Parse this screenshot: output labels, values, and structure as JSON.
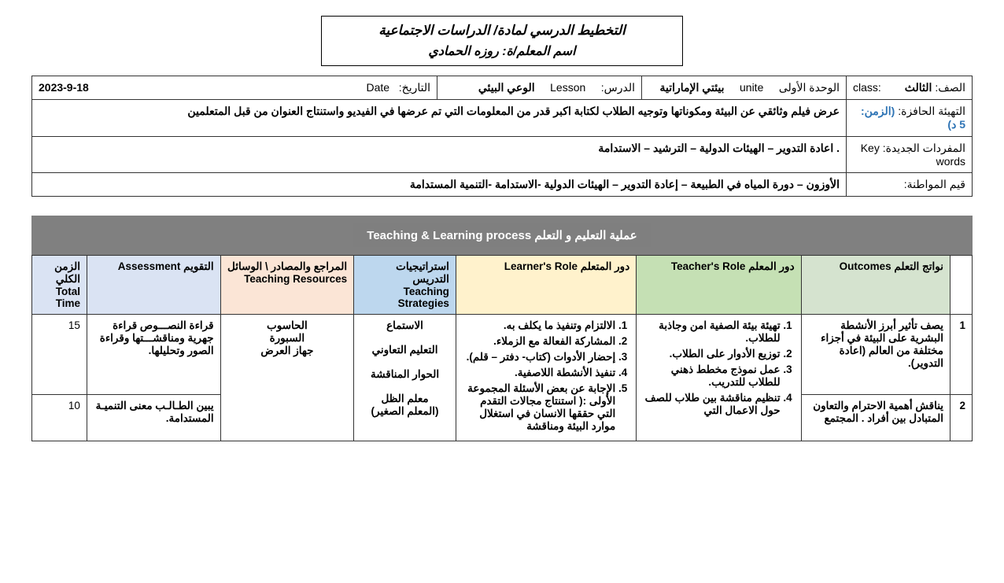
{
  "header": {
    "title_main": "التخطيط الدرسي لمادة/ الدراسات الاجتماعية",
    "title_sub": "اسم المعلم/ة: روزه الحمادي"
  },
  "info_row": {
    "class_label": "الصف:",
    "class_value": "الثالث",
    "class_en": ":class",
    "unit_label": "الوحدة الأولى",
    "unit_en": "unite",
    "unit_value": "بيئتي الإماراتية",
    "lesson_label": "الدرس:",
    "lesson_en": "Lesson",
    "lesson_value": "الوعي البيئي",
    "date_label": "التاريخ:",
    "date_en": "Date",
    "date_value": "2023-9-18"
  },
  "warmup": {
    "label": "التهيئة الحافزة:",
    "time_note": "(الزمن: 5 د)",
    "content": "عرض فيلم وثائقي عن البيئة ومكوناتها وتوجيه الطلاب لكتابة اكبر قدر من  المعلومات التي تم عرضها في الفيديو واستنتاج العنوان من قبل المتعلمين"
  },
  "vocab": {
    "label": "المفردات الجديدة:",
    "label_en": "Key words",
    "content": ". اعادة التدوير – الهيئات الدولية – الترشيد – الاستدامة"
  },
  "values": {
    "label": "قيم المواطنة:",
    "content": "الأوزون – دورة المياه في الطبيعة – إعادة التدوير – الهيئات الدولية  -الاستدامة  -التنمية المستدامة"
  },
  "section_title": "عملية التعليم و التعلم Teaching & Learning process",
  "plan_headers": {
    "num": "",
    "outcomes": "نواتج التعلم Outcomes",
    "teacher": "دور المعلم Teacher's Role",
    "learner": "دور المتعلم Learner's Role",
    "strategy_ar": "استراتيجيات التدريس",
    "strategy_en": "Teaching Strategies",
    "resources_ar": "المراجع والمصادر \\ الوسائل",
    "resources_en": "Teaching Resources",
    "assessment": "التقويم Assessment",
    "time_ar": "الزمن الكلي",
    "time_en": "Total Time"
  },
  "outcomes": [
    {
      "n": "1",
      "text": "يصف تأثير أبرز الأنشطة البشرية على البيئة في أجزاء مختلفة من العالم (اعادة التدوير)."
    },
    {
      "n": "2",
      "text": "يناقش أهمية الاحترام والتعاون المتبادل بين أفراد . المجتمع"
    }
  ],
  "teacher_role": [
    "تهيئة بيئة الصفية امن وجاذبة للطلاب.",
    "توزيع الأدوار على الطلاب.",
    "عمل نموذج مخطط ذهني للطلاب للتدريب.",
    "تنظيم مناقشة بين طلاب للصف حول الاعمال التي"
  ],
  "learner_role": [
    "الالتزام وتنفيذ ما يكلف به.",
    "المشاركة الفعالة مع الزملاء.",
    "إحضار الأدوات (كتاب- دفتر – قلم).",
    "تنفيذ الأنشطة اللاصفية.",
    "الإجابة عن بعض الأسئلة المجموعة الأولى :( استنتاج مجالات التقدم التي حققها الانسان في استغلال موارد البيئة  ومناقشة"
  ],
  "strategies": "الاستماع\n\nالتعليم التعاوني\n\nالحوار المناقشة\n\nمعلم الظل\n(المعلم الصغير)",
  "resources": "الحاسوب\nالسبورة\nجهاز العرض",
  "assessment": [
    {
      "text": "قراءة النصـــوص قراءة جهرية ومناقشـــتها وقراءة الصور وتحليلها.",
      "time": "15"
    },
    {
      "text": "يبين الطـالـب معنى التنميـة المستدامة.",
      "time": "10"
    }
  ]
}
